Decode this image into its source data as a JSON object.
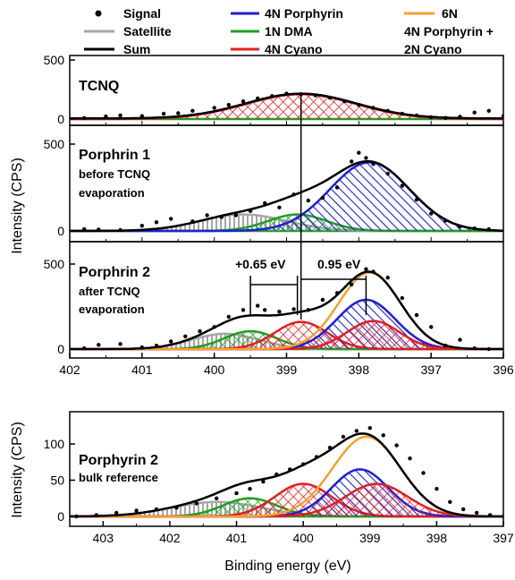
{
  "legend": {
    "items": [
      {
        "label": "Signal",
        "marker": "dot",
        "color": "#000000"
      },
      {
        "label": "Satellite",
        "marker": "line",
        "color": "#a6a6a6"
      },
      {
        "label": "Sum",
        "marker": "line",
        "color": "#000000"
      },
      {
        "label": "4N Porphyrin",
        "marker": "line",
        "color": "#1f1fd6"
      },
      {
        "label": "1N DMA",
        "marker": "line",
        "color": "#1f9e1f"
      },
      {
        "label": "4N Cyano",
        "marker": "line",
        "color": "#e01f1f"
      },
      {
        "label": "6N",
        "marker": "line",
        "color": "#f5a030"
      },
      {
        "label": "4N Porphyrin +",
        "marker": "none",
        "color": ""
      },
      {
        "label": "2N Cyano",
        "marker": "none",
        "color": ""
      }
    ]
  },
  "axes": {
    "ylabel": "Intensity (CPS)",
    "xlabel": "Binding energy (eV)"
  },
  "annotations": {
    "shift_left": "+0.65 eV",
    "shift_right": "0.95 eV"
  },
  "chart_data": [
    {
      "type": "area",
      "panel_label": "TCNQ",
      "x_reversed": true,
      "xlim": [
        396,
        402
      ],
      "ylim": [
        0,
        500
      ],
      "yticks": [
        0,
        500
      ],
      "components": [
        {
          "name": "4N Cyano",
          "center": 398.8,
          "height": 210,
          "fwhm": 1.8,
          "color": "#e01f1f",
          "pattern": "cross"
        }
      ],
      "sum": {
        "baseline": 5
      },
      "signal": [
        [
          402.1,
          3
        ],
        [
          401.8,
          8
        ],
        [
          401.5,
          22
        ],
        [
          401.3,
          30
        ],
        [
          401.0,
          25
        ],
        [
          400.7,
          45
        ],
        [
          400.5,
          50
        ],
        [
          400.3,
          70
        ],
        [
          400.0,
          95
        ],
        [
          399.8,
          120
        ],
        [
          399.6,
          150
        ],
        [
          399.4,
          175
        ],
        [
          399.2,
          195
        ],
        [
          399.0,
          215
        ],
        [
          398.8,
          210
        ],
        [
          398.6,
          200
        ],
        [
          398.4,
          180
        ],
        [
          398.2,
          150
        ],
        [
          398.0,
          120
        ],
        [
          397.8,
          95
        ],
        [
          397.6,
          70
        ],
        [
          397.4,
          45
        ],
        [
          397.2,
          30
        ],
        [
          397.0,
          15
        ],
        [
          396.8,
          10
        ],
        [
          396.6,
          20
        ],
        [
          396.4,
          55
        ],
        [
          396.2,
          70
        ],
        [
          396.0,
          25
        ]
      ]
    },
    {
      "type": "area",
      "panel_label": "Porphrin 1",
      "panel_sublabel_1": "before TCNQ",
      "panel_sublabel_2": "evaporation",
      "x_reversed": true,
      "xlim": [
        396,
        402
      ],
      "ylim": [
        0,
        500
      ],
      "yticks": [
        0,
        500
      ],
      "components": [
        {
          "name": "Satellite",
          "center": 399.6,
          "height": 95,
          "fwhm": 1.4,
          "color": "#a6a6a6",
          "pattern": "vline"
        },
        {
          "name": "1N DMA",
          "center": 398.85,
          "height": 95,
          "fwhm": 0.95,
          "color": "#1f9e1f",
          "pattern": "cross"
        },
        {
          "name": "4N Porphyrin",
          "center": 397.85,
          "height": 395,
          "fwhm": 1.3,
          "color": "#1f1fd6",
          "pattern": "diag"
        }
      ],
      "sum": {
        "baseline": 0
      },
      "signal": [
        [
          402.1,
          0
        ],
        [
          401.8,
          10
        ],
        [
          401.6,
          8
        ],
        [
          401.3,
          5
        ],
        [
          401.0,
          30
        ],
        [
          400.8,
          50
        ],
        [
          400.6,
          70
        ],
        [
          400.3,
          55
        ],
        [
          400.1,
          90
        ],
        [
          399.9,
          80
        ],
        [
          399.7,
          90
        ],
        [
          399.5,
          115
        ],
        [
          399.3,
          160
        ],
        [
          399.1,
          135
        ],
        [
          398.9,
          210
        ],
        [
          398.7,
          175
        ],
        [
          398.5,
          190
        ],
        [
          398.3,
          250
        ],
        [
          398.1,
          400
        ],
        [
          398.0,
          450
        ],
        [
          397.9,
          420
        ],
        [
          397.8,
          385
        ],
        [
          397.6,
          330
        ],
        [
          397.4,
          260
        ],
        [
          397.2,
          180
        ],
        [
          397.0,
          100
        ],
        [
          396.8,
          60
        ],
        [
          396.6,
          25
        ],
        [
          396.4,
          15
        ],
        [
          396.2,
          10
        ]
      ]
    },
    {
      "type": "area",
      "panel_label": "Porphrin 2",
      "panel_sublabel_1": "after TCNQ",
      "panel_sublabel_2": "evaporation",
      "x_reversed": true,
      "xlim": [
        396,
        402
      ],
      "ylim": [
        0,
        500
      ],
      "yticks": [
        0,
        500
      ],
      "xticks": [
        396,
        397,
        398,
        399,
        400,
        401,
        402
      ],
      "components": [
        {
          "name": "Satellite",
          "center": 399.85,
          "height": 90,
          "fwhm": 1.1,
          "color": "#a6a6a6",
          "pattern": "vline"
        },
        {
          "name": "1N DMA",
          "center": 399.5,
          "height": 105,
          "fwhm": 0.85,
          "color": "#1f9e1f",
          "pattern": "cross"
        },
        {
          "name": "4N Cyano",
          "center": 398.8,
          "height": 160,
          "fwhm": 0.85,
          "color": "#e01f1f",
          "pattern": "cross"
        },
        {
          "name": "4N Porphyrin",
          "center": 397.9,
          "height": 290,
          "fwhm": 0.95,
          "color": "#1f1fd6",
          "pattern": "diag"
        },
        {
          "name": "4N Cyano",
          "center": 397.8,
          "height": 165,
          "fwhm": 0.85,
          "color": "#e01f1f",
          "pattern": "cross"
        },
        {
          "name": "6N",
          "center": 397.85,
          "height": 450,
          "fwhm": 1.0,
          "color": "#f5a030",
          "pattern": "none"
        }
      ],
      "sum": {
        "baseline": 0
      },
      "signal": [
        [
          402.1,
          20
        ],
        [
          401.8,
          5
        ],
        [
          401.6,
          25
        ],
        [
          401.3,
          30
        ],
        [
          401.0,
          10
        ],
        [
          400.8,
          20
        ],
        [
          400.6,
          45
        ],
        [
          400.4,
          75
        ],
        [
          400.2,
          105
        ],
        [
          400.0,
          130
        ],
        [
          399.8,
          190
        ],
        [
          399.6,
          230
        ],
        [
          399.4,
          255
        ],
        [
          399.3,
          230
        ],
        [
          399.1,
          220
        ],
        [
          398.9,
          235
        ],
        [
          398.7,
          230
        ],
        [
          398.5,
          290
        ],
        [
          398.3,
          330
        ],
        [
          398.1,
          380
        ],
        [
          397.9,
          470
        ],
        [
          397.8,
          455
        ],
        [
          397.6,
          420
        ],
        [
          397.4,
          300
        ],
        [
          397.2,
          200
        ],
        [
          397.0,
          130
        ],
        [
          396.8,
          20
        ],
        [
          396.6,
          55
        ],
        [
          396.4,
          5
        ],
        [
          396.2,
          0
        ]
      ]
    },
    {
      "type": "area",
      "panel_label": "Porphyrin 2",
      "panel_sublabel_1": "bulk reference",
      "x_reversed": true,
      "xlim": [
        397,
        403.5
      ],
      "ylim": [
        0,
        150
      ],
      "yticks": [
        0,
        50,
        100
      ],
      "xticks": [
        397,
        398,
        399,
        400,
        401,
        402,
        403
      ],
      "components": [
        {
          "name": "Satellite",
          "center": 401.3,
          "height": 20,
          "fwhm": 1.6,
          "color": "#a6a6a6",
          "pattern": "vline"
        },
        {
          "name": "1N DMA",
          "center": 400.8,
          "height": 25,
          "fwhm": 0.95,
          "color": "#1f9e1f",
          "pattern": "cross"
        },
        {
          "name": "4N Cyano",
          "center": 400.0,
          "height": 45,
          "fwhm": 1.0,
          "color": "#e01f1f",
          "pattern": "cross"
        },
        {
          "name": "4N Porphyrin",
          "center": 399.15,
          "height": 65,
          "fwhm": 1.0,
          "color": "#1f1fd6",
          "pattern": "diag"
        },
        {
          "name": "4N Cyano",
          "center": 398.9,
          "height": 45,
          "fwhm": 1.1,
          "color": "#e01f1f",
          "pattern": "cross"
        },
        {
          "name": "6N",
          "center": 399.05,
          "height": 110,
          "fwhm": 1.2,
          "color": "#f5a030",
          "pattern": "none"
        }
      ],
      "sum": {
        "baseline": 0
      },
      "signal": [
        [
          403.4,
          0
        ],
        [
          403.1,
          2
        ],
        [
          402.8,
          5
        ],
        [
          402.5,
          8
        ],
        [
          402.2,
          10
        ],
        [
          401.9,
          12
        ],
        [
          401.6,
          18
        ],
        [
          401.3,
          25
        ],
        [
          401.0,
          32
        ],
        [
          400.8,
          38
        ],
        [
          400.6,
          48
        ],
        [
          400.4,
          58
        ],
        [
          400.2,
          65
        ],
        [
          400.0,
          72
        ],
        [
          399.8,
          82
        ],
        [
          399.6,
          95
        ],
        [
          399.4,
          110
        ],
        [
          399.2,
          118
        ],
        [
          399.0,
          122
        ],
        [
          398.8,
          112
        ],
        [
          398.6,
          98
        ],
        [
          398.4,
          80
        ],
        [
          398.2,
          60
        ],
        [
          398.0,
          38
        ],
        [
          397.8,
          20
        ],
        [
          397.6,
          10
        ],
        [
          397.4,
          5
        ],
        [
          397.2,
          2
        ],
        [
          397.0,
          0
        ]
      ]
    }
  ]
}
